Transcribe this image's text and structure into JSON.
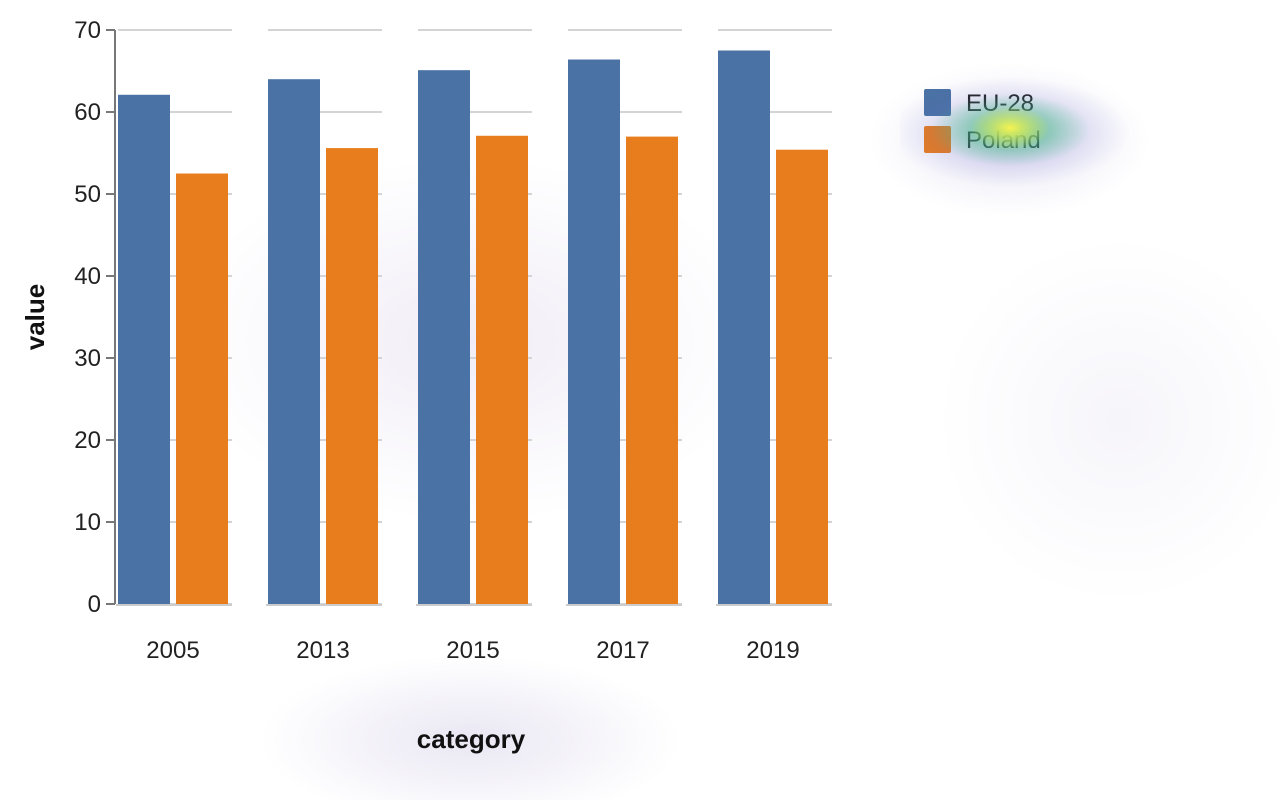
{
  "chart_data": {
    "type": "bar",
    "xlabel": "category",
    "ylabel": "value",
    "ylim": [
      0,
      70
    ],
    "yticks": [
      0,
      10,
      20,
      30,
      40,
      50,
      60,
      70
    ],
    "categories": [
      "2005",
      "2013",
      "2015",
      "2017",
      "2019"
    ],
    "series": [
      {
        "name": "EU-28",
        "color": "#4a72a4",
        "values": [
          62.1,
          64.0,
          65.1,
          66.4,
          67.5
        ]
      },
      {
        "name": "Poland",
        "color": "#e87d1e",
        "values": [
          52.5,
          55.6,
          57.1,
          57.0,
          55.4
        ]
      }
    ],
    "grid": true,
    "legend": "top-right"
  }
}
